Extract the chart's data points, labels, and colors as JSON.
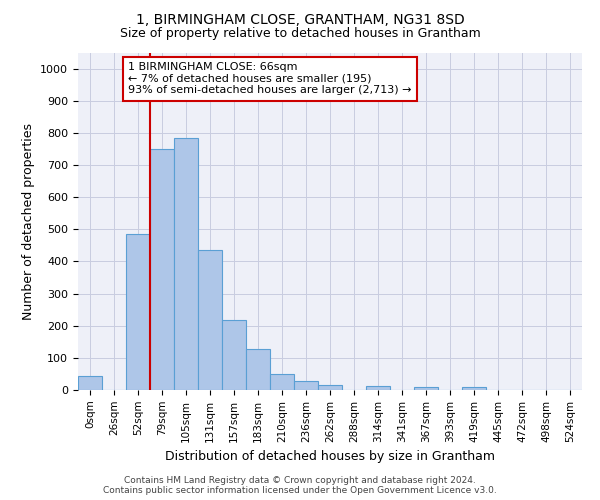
{
  "title": "1, BIRMINGHAM CLOSE, GRANTHAM, NG31 8SD",
  "subtitle": "Size of property relative to detached houses in Grantham",
  "xlabel": "Distribution of detached houses by size in Grantham",
  "ylabel": "Number of detached properties",
  "bar_color": "#aec6e8",
  "bar_edge_color": "#5a9fd4",
  "categories": [
    "0sqm",
    "26sqm",
    "52sqm",
    "79sqm",
    "105sqm",
    "131sqm",
    "157sqm",
    "183sqm",
    "210sqm",
    "236sqm",
    "262sqm",
    "288sqm",
    "314sqm",
    "341sqm",
    "367sqm",
    "393sqm",
    "419sqm",
    "445sqm",
    "472sqm",
    "498sqm",
    "524sqm"
  ],
  "values": [
    45,
    0,
    485,
    750,
    785,
    435,
    218,
    128,
    50,
    27,
    16,
    0,
    11,
    0,
    8,
    0,
    10,
    0,
    0,
    0,
    0
  ],
  "ylim": [
    0,
    1050
  ],
  "yticks": [
    0,
    100,
    200,
    300,
    400,
    500,
    600,
    700,
    800,
    900,
    1000
  ],
  "annotation_text": "1 BIRMINGHAM CLOSE: 66sqm\n← 7% of detached houses are smaller (195)\n93% of semi-detached houses are larger (2,713) →",
  "annotation_box_color": "#ffffff",
  "annotation_box_edge_color": "#cc0000",
  "vline_color": "#cc0000",
  "footer_line1": "Contains HM Land Registry data © Crown copyright and database right 2024.",
  "footer_line2": "Contains public sector information licensed under the Open Government Licence v3.0.",
  "background_color": "#eef0f8",
  "grid_color": "#c8cce0"
}
